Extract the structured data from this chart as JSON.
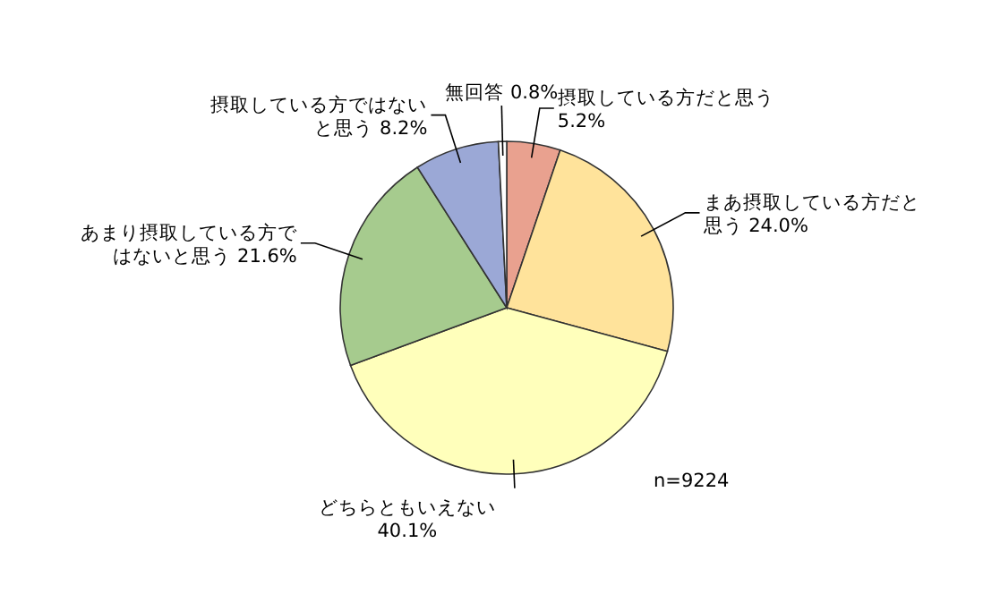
{
  "chart_data": {
    "type": "pie",
    "categories": [
      "摂取している方だと思う",
      "まあ摂取している方だと思う",
      "どちらともいえない",
      "あまり摂取している方ではないと思う",
      "摂取している方ではないと思う",
      "無回答"
    ],
    "values": [
      5.2,
      24.0,
      40.1,
      21.6,
      8.2,
      0.8
    ],
    "value_labels": [
      "5.2%",
      "24.0%",
      "40.1%",
      "21.6%",
      "8.2%",
      "0.8%"
    ],
    "colors": [
      "#e9a18f",
      "#ffe39b",
      "#ffffbb",
      "#a6cb8e",
      "#9ba8d6",
      "#ffffff"
    ],
    "annotations": [
      "n=9224"
    ]
  }
}
